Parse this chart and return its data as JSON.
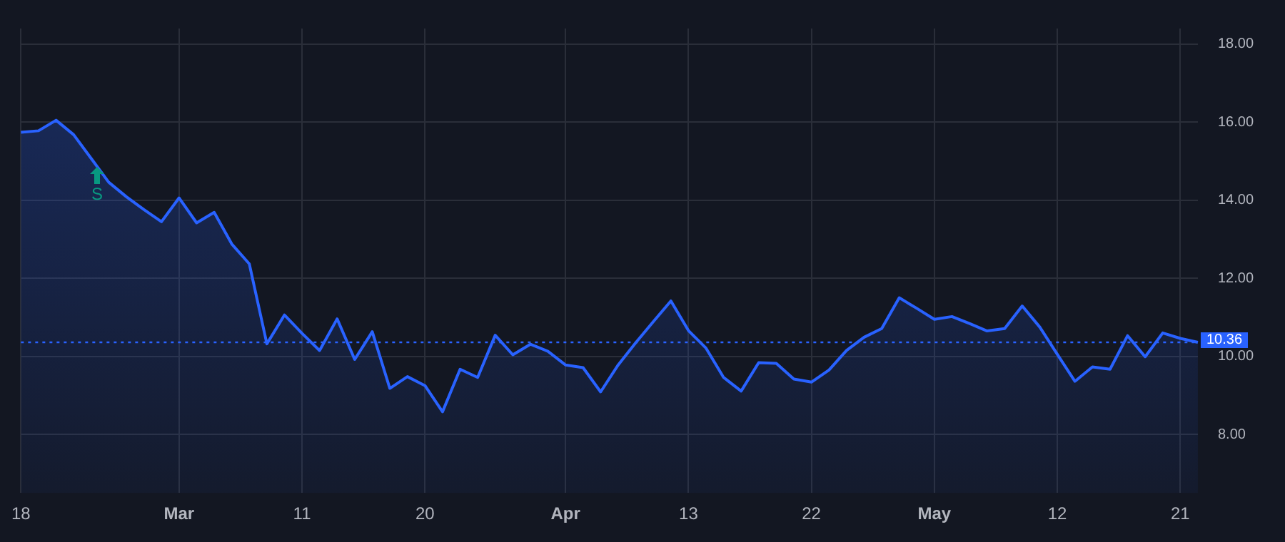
{
  "chart_data": {
    "type": "area",
    "categories": [
      "18",
      null,
      null,
      null,
      null,
      null,
      null,
      null,
      null,
      "Mar",
      null,
      null,
      null,
      null,
      null,
      null,
      "11",
      null,
      null,
      null,
      null,
      null,
      null,
      "20",
      null,
      null,
      null,
      null,
      null,
      null,
      null,
      "Apr",
      null,
      null,
      null,
      null,
      null,
      null,
      "13",
      null,
      null,
      null,
      null,
      null,
      null,
      "22",
      null,
      null,
      null,
      null,
      null,
      null,
      "May",
      null,
      null,
      null,
      null,
      null,
      null,
      "12",
      null,
      null,
      null,
      null,
      null,
      null,
      "21",
      null
    ],
    "series": [
      {
        "color": "#2962ff",
        "values": [
          15.74,
          15.78,
          16.05,
          15.68,
          15.07,
          14.46,
          14.09,
          13.76,
          13.45,
          14.06,
          13.42,
          13.69,
          12.88,
          12.37,
          10.32,
          11.06,
          10.59,
          10.15,
          10.96,
          9.92,
          10.63,
          9.18,
          9.48,
          9.25,
          8.58,
          9.67,
          9.46,
          10.54,
          10.04,
          10.31,
          10.13,
          9.78,
          9.71,
          9.09,
          9.78,
          10.35,
          10.89,
          11.42,
          10.66,
          10.21,
          9.46,
          9.11,
          9.84,
          9.82,
          9.42,
          9.34,
          9.65,
          10.15,
          10.49,
          10.71,
          11.5,
          11.23,
          10.95,
          11.02,
          10.84,
          10.65,
          10.71,
          11.29,
          10.75,
          10.05,
          9.36,
          9.73,
          9.67,
          10.53,
          9.99,
          10.6,
          10.46,
          10.36
        ]
      }
    ],
    "ylim": [
      6.5,
      18.4
    ],
    "yticks": [
      {
        "value": 8,
        "label": "8.00"
      },
      {
        "value": 10,
        "label": "10.00"
      },
      {
        "value": 12,
        "label": "12.00"
      },
      {
        "value": 14,
        "label": "14.00"
      },
      {
        "value": 16,
        "label": "16.00"
      },
      {
        "value": 18,
        "label": "18.00"
      }
    ],
    "ref_lines": [
      {
        "axis": "y",
        "value": 10.36,
        "label": "10.36",
        "color": "#2962ff",
        "line_style": "dotted"
      }
    ],
    "annotations": [
      "S"
    ],
    "grid": true,
    "legend": false,
    "marker": "none",
    "line_style": "solid"
  }
}
